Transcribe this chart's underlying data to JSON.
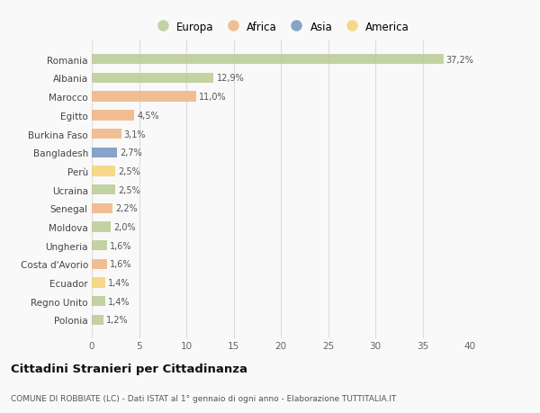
{
  "countries": [
    "Romania",
    "Albania",
    "Marocco",
    "Egitto",
    "Burkina Faso",
    "Bangladesh",
    "Perù",
    "Ucraina",
    "Senegal",
    "Moldova",
    "Ungheria",
    "Costa d'Avorio",
    "Ecuador",
    "Regno Unito",
    "Polonia"
  ],
  "values": [
    37.2,
    12.9,
    11.0,
    4.5,
    3.1,
    2.7,
    2.5,
    2.5,
    2.2,
    2.0,
    1.6,
    1.6,
    1.4,
    1.4,
    1.2
  ],
  "labels": [
    "37,2%",
    "12,9%",
    "11,0%",
    "4,5%",
    "3,1%",
    "2,7%",
    "2,5%",
    "2,5%",
    "2,2%",
    "2,0%",
    "1,6%",
    "1,6%",
    "1,4%",
    "1,4%",
    "1,2%"
  ],
  "colors": [
    "#b5c98e",
    "#b5c98e",
    "#f0b07a",
    "#f0b07a",
    "#f0b07a",
    "#6a8ebf",
    "#f5d06e",
    "#b5c98e",
    "#f0b07a",
    "#b5c98e",
    "#b5c98e",
    "#f0b07a",
    "#f5d06e",
    "#b5c98e",
    "#b5c98e"
  ],
  "legend_labels": [
    "Europa",
    "Africa",
    "Asia",
    "America"
  ],
  "legend_colors": [
    "#b5c98e",
    "#f0b07a",
    "#6a8ebf",
    "#f5d06e"
  ],
  "title": "Cittadini Stranieri per Cittadinanza",
  "subtitle": "COMUNE DI ROBBIATE (LC) - Dati ISTAT al 1° gennaio di ogni anno - Elaborazione TUTTITALIA.IT",
  "xlim": [
    0,
    40
  ],
  "xticks": [
    0,
    5,
    10,
    15,
    20,
    25,
    30,
    35,
    40
  ],
  "background_color": "#f9f9f9",
  "grid_color": "#dddddd",
  "bar_alpha": 0.8,
  "bar_height": 0.55
}
